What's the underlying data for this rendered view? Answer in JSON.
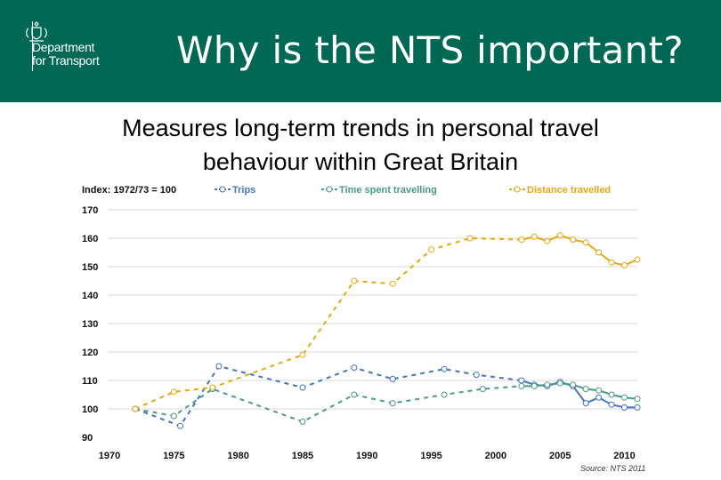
{
  "header": {
    "org_line1": "Department",
    "org_line2": "for Transport",
    "title": "Why is the NTS important?",
    "logo_icon": "royal-crest-icon"
  },
  "subtitle": {
    "line1": "Measures long-term trends in personal travel",
    "line2": "behaviour within Great Britain"
  },
  "chart_data": {
    "type": "line",
    "index_label": "Index: 1972/73 = 100",
    "xlim": [
      1970,
      2011
    ],
    "ylim": [
      90,
      170
    ],
    "x_ticks": [
      1970,
      1975,
      1980,
      1985,
      1990,
      1995,
      2000,
      2005,
      2010
    ],
    "y_ticks": [
      90,
      100,
      110,
      120,
      130,
      140,
      150,
      160,
      170
    ],
    "grid": "horizontal",
    "legend_position": "top",
    "source": "Source: NTS 2011",
    "series": [
      {
        "name": "Trips",
        "color": "#4472c4",
        "points": [
          [
            1972,
            100
          ],
          [
            1975.5,
            94
          ],
          [
            1978.5,
            115
          ],
          [
            1985,
            107.5
          ],
          [
            1989,
            114.5
          ],
          [
            1992,
            110.5
          ],
          [
            1996,
            114
          ],
          [
            1998.5,
            112
          ],
          [
            2002,
            110
          ],
          [
            2003,
            108.5
          ],
          [
            2004,
            108
          ],
          [
            2005,
            109.5
          ],
          [
            2006,
            108
          ],
          [
            2007,
            102
          ],
          [
            2008,
            104
          ],
          [
            2009,
            101.5
          ],
          [
            2010,
            100.5
          ],
          [
            2011,
            100.5
          ]
        ],
        "dashed_until": 2002
      },
      {
        "name": "Time spent travelling",
        "color": "#4a9a85",
        "points": [
          [
            1972,
            100
          ],
          [
            1975,
            97.5
          ],
          [
            1978,
            107
          ],
          [
            1985,
            95.5
          ],
          [
            1989,
            105
          ],
          [
            1992,
            102
          ],
          [
            1996,
            105
          ],
          [
            1999,
            107
          ],
          [
            2002,
            108
          ],
          [
            2003,
            108
          ],
          [
            2004,
            108.5
          ],
          [
            2005,
            109
          ],
          [
            2006,
            108.5
          ],
          [
            2007,
            107
          ],
          [
            2008,
            106.5
          ],
          [
            2009,
            105
          ],
          [
            2010,
            104
          ],
          [
            2011,
            103.5
          ]
        ],
        "dashed_until": 2002
      },
      {
        "name": "Distance travelled",
        "color": "#e8a70f",
        "points": [
          [
            1972,
            100
          ],
          [
            1975,
            106
          ],
          [
            1978,
            107.5
          ],
          [
            1985,
            119
          ],
          [
            1989,
            145
          ],
          [
            1992,
            144
          ],
          [
            1995,
            156
          ],
          [
            1998,
            160
          ],
          [
            2002,
            159.5
          ],
          [
            2003,
            160.5
          ],
          [
            2004,
            159
          ],
          [
            2005,
            161
          ],
          [
            2006,
            159.5
          ],
          [
            2007,
            158.5
          ],
          [
            2008,
            155
          ],
          [
            2009,
            151.5
          ],
          [
            2010,
            150.5
          ],
          [
            2011,
            152.5
          ]
        ],
        "dashed_until": 2002
      }
    ]
  }
}
